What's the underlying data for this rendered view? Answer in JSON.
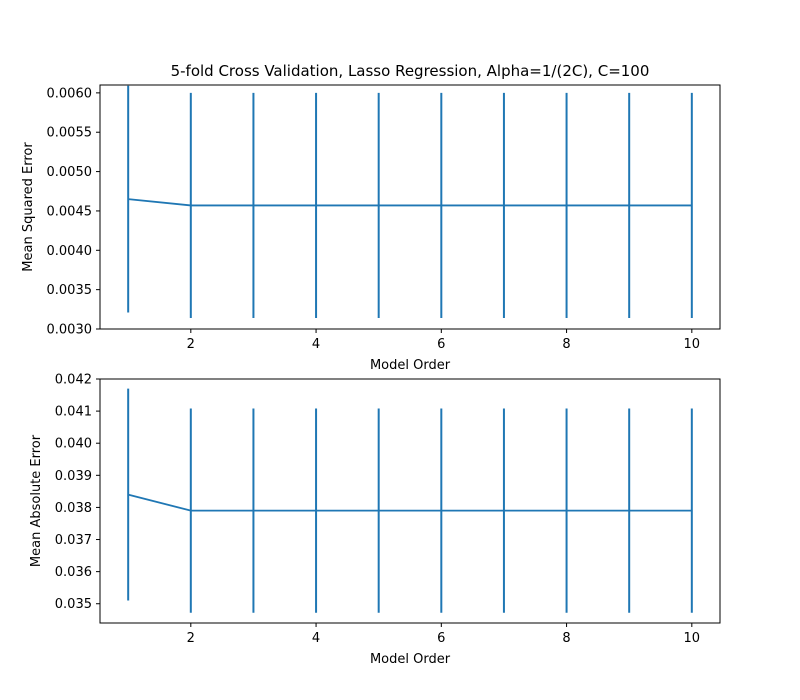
{
  "figure": {
    "title": "5-fold Cross Validation, Lasso Regression, Alpha=1/(2C), C=100"
  },
  "chart_data": [
    {
      "type": "line",
      "error_bars": true,
      "xlabel": "Model Order",
      "ylabel": "Mean Squared Error",
      "xlim": [
        0.55,
        10.45
      ],
      "ylim": [
        0.003,
        0.0061
      ],
      "xticks": [
        2,
        4,
        6,
        8,
        10
      ],
      "xtick_labels": [
        "2",
        "4",
        "6",
        "8",
        "10"
      ],
      "yticks": [
        0.003,
        0.0035,
        0.004,
        0.0045,
        0.005,
        0.0055,
        0.006
      ],
      "ytick_labels": [
        "0.0030",
        "0.0035",
        "0.0040",
        "0.0045",
        "0.0050",
        "0.0055",
        "0.0060"
      ],
      "grid": false,
      "color": "#1f77b4",
      "x": [
        1,
        2,
        3,
        4,
        5,
        6,
        7,
        8,
        9,
        10
      ],
      "y": [
        0.00465,
        0.00457,
        0.00457,
        0.00457,
        0.00457,
        0.00457,
        0.00457,
        0.00457,
        0.00457,
        0.00457
      ],
      "yerr": [
        0.00144,
        0.00143,
        0.00143,
        0.00143,
        0.00143,
        0.00143,
        0.00143,
        0.00143,
        0.00143,
        0.00143
      ]
    },
    {
      "type": "line",
      "error_bars": true,
      "xlabel": "Model Order",
      "ylabel": "Mean Absolute Error",
      "xlim": [
        0.55,
        10.45
      ],
      "ylim": [
        0.0344,
        0.042
      ],
      "xticks": [
        2,
        4,
        6,
        8,
        10
      ],
      "xtick_labels": [
        "2",
        "4",
        "6",
        "8",
        "10"
      ],
      "yticks": [
        0.035,
        0.036,
        0.037,
        0.038,
        0.039,
        0.04,
        0.041,
        0.042
      ],
      "ytick_labels": [
        "0.035",
        "0.036",
        "0.037",
        "0.038",
        "0.039",
        "0.040",
        "0.041",
        "0.042"
      ],
      "grid": false,
      "color": "#1f77b4",
      "x": [
        1,
        2,
        3,
        4,
        5,
        6,
        7,
        8,
        9,
        10
      ],
      "y": [
        0.0384,
        0.0379,
        0.0379,
        0.0379,
        0.0379,
        0.0379,
        0.0379,
        0.0379,
        0.0379,
        0.0379
      ],
      "yerr": [
        0.0033,
        0.00318,
        0.00318,
        0.00318,
        0.00318,
        0.00318,
        0.00318,
        0.00318,
        0.00318,
        0.00318
      ]
    }
  ]
}
